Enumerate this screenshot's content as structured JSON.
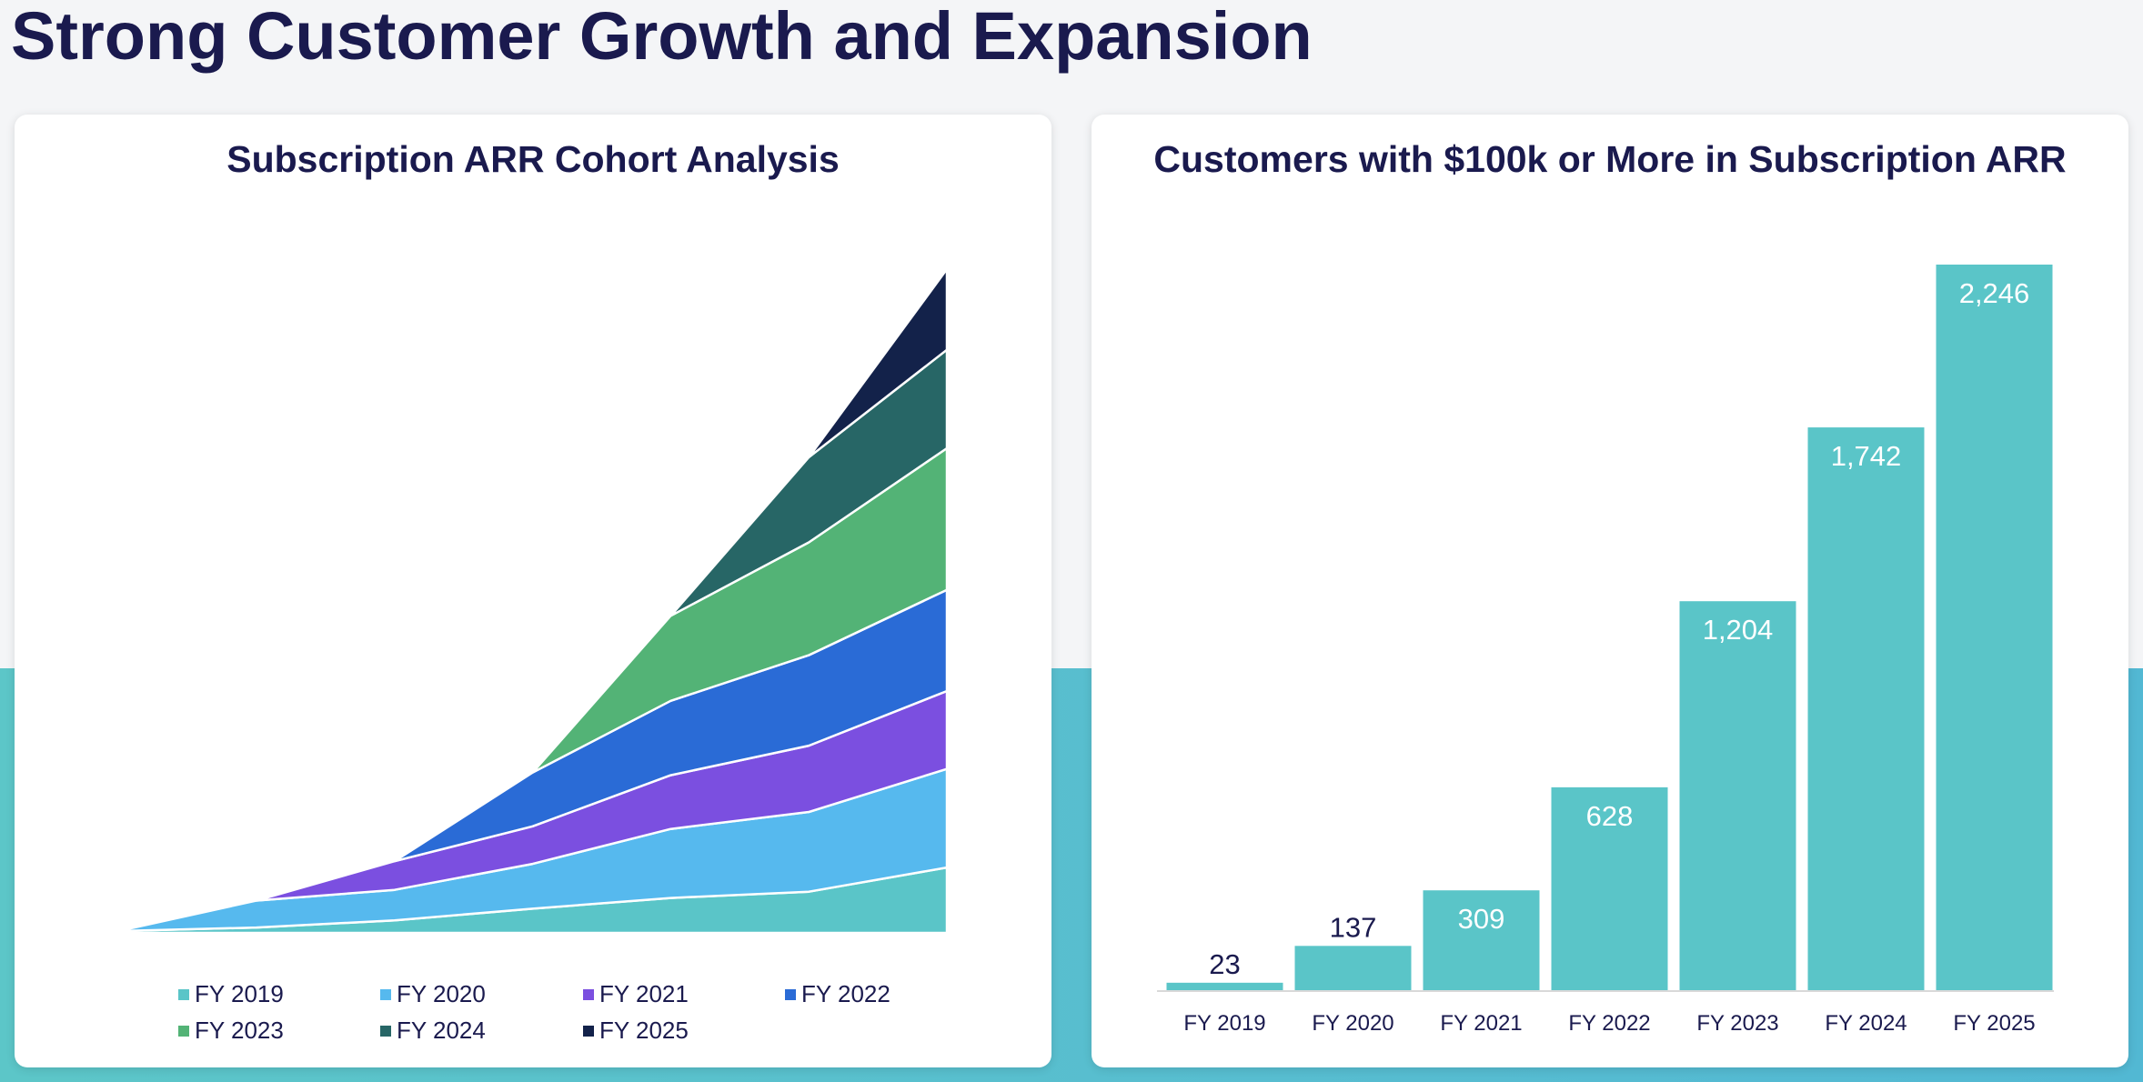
{
  "page": {
    "title": "Strong Customer Growth and Expansion"
  },
  "colors": {
    "title": "#1a1a4e",
    "bar": "#5ac5c8",
    "band": "#57bdd0"
  },
  "chart_data": [
    {
      "type": "area",
      "stacked": true,
      "title": "Subscription ARR Cohort Analysis",
      "x": [
        "FY 2019",
        "FY 2020",
        "FY 2021",
        "FY 2022",
        "FY 2023",
        "FY 2024",
        "FY 2025"
      ],
      "legend_position": "bottom",
      "axes_visible": false,
      "series": [
        {
          "name": "FY 2019",
          "color": "#5ac5c8",
          "values": [
            2,
            6,
            14,
            27,
            39,
            46,
            73
          ]
        },
        {
          "name": "FY 2020",
          "color": "#56b9ee",
          "values": [
            null,
            30,
            34,
            50,
            77,
            89,
            110
          ]
        },
        {
          "name": "FY 2021",
          "color": "#7b4fe0",
          "values": [
            null,
            null,
            32,
            42,
            60,
            74,
            87
          ]
        },
        {
          "name": "FY 2022",
          "color": "#2a6bd6",
          "values": [
            null,
            null,
            null,
            60,
            83,
            101,
            113
          ]
        },
        {
          "name": "FY 2023",
          "color": "#53b376",
          "values": [
            null,
            null,
            null,
            null,
            95,
            126,
            158
          ]
        },
        {
          "name": "FY 2024",
          "color": "#276666",
          "values": [
            null,
            null,
            null,
            null,
            null,
            95,
            110
          ]
        },
        {
          "name": "FY 2025",
          "color": "#13224a",
          "values": [
            null,
            null,
            null,
            null,
            null,
            null,
            90
          ]
        }
      ]
    },
    {
      "type": "bar",
      "title": "Customers with $100k or More in Subscription ARR",
      "categories": [
        "FY 2019",
        "FY 2020",
        "FY 2021",
        "FY 2022",
        "FY 2023",
        "FY 2024",
        "FY 2025"
      ],
      "values": [
        23,
        137,
        309,
        628,
        1204,
        1742,
        2246
      ],
      "value_labels": [
        "23",
        "137",
        "309",
        "628",
        "1,204",
        "1,742",
        "2,246"
      ],
      "ylim": [
        0,
        2246
      ],
      "axes_visible": false
    }
  ]
}
